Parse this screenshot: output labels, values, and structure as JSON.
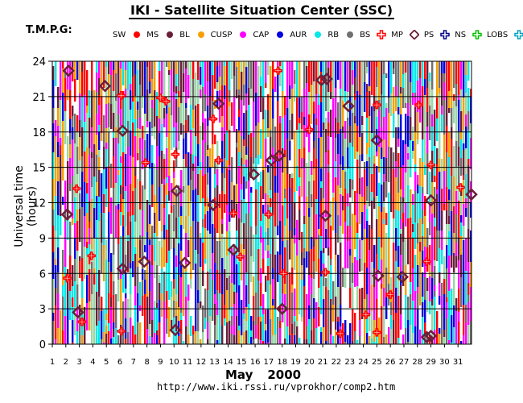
{
  "title": "IKI - Satellite Situation Center (SSC)",
  "header_left": "T.M.P.G:",
  "legend": [
    {
      "label": "SW",
      "color": "#ff0000",
      "shape": "dot"
    },
    {
      "label": "MS",
      "color": "#6b1e3a",
      "shape": "dot"
    },
    {
      "label": "BL",
      "color": "#f5a000",
      "shape": "dot"
    },
    {
      "label": "CUSP",
      "color": "#ff00ff",
      "shape": "dot"
    },
    {
      "label": "CAP",
      "color": "#0000e0",
      "shape": "dot"
    },
    {
      "label": "AUR",
      "color": "#00e8e8",
      "shape": "dot"
    },
    {
      "label": "RB",
      "color": "#707070",
      "shape": "dot"
    },
    {
      "label": "BS",
      "color": "#ff0000",
      "shape": "cross"
    },
    {
      "label": "MP",
      "color": "#6b1e3a",
      "shape": "diamond"
    },
    {
      "label": "PS",
      "color": "#00008b",
      "shape": "cross"
    },
    {
      "label": "NS",
      "color": "#00c000",
      "shape": "cross"
    },
    {
      "label": "LOBS",
      "color": "#00a0c0",
      "shape": "cross"
    }
  ],
  "chart_data": {
    "type": "scatter",
    "ylabel": "Universal time (hours)",
    "xlabel_month": "May",
    "xlabel_year": "2000",
    "x_ticks": [
      1,
      2,
      3,
      4,
      5,
      6,
      7,
      8,
      9,
      10,
      11,
      12,
      13,
      14,
      15,
      16,
      17,
      18,
      19,
      20,
      21,
      22,
      23,
      24,
      25,
      26,
      27,
      28,
      29,
      30,
      31
    ],
    "y_ticks": [
      0,
      3,
      6,
      9,
      12,
      15,
      18,
      21,
      24
    ],
    "xlim": [
      1,
      32
    ],
    "ylim": [
      0,
      24
    ],
    "grid": true,
    "background": "dense colored vertical bars (orbit region coverage per satellite)",
    "series": [
      {
        "name": "BS",
        "points": [
          [
            2.1,
            5.6
          ],
          [
            2.8,
            13.2
          ],
          [
            3.2,
            1.9
          ],
          [
            3.9,
            7.5
          ],
          [
            6.1,
            21.1
          ],
          [
            6.1,
            1.1
          ],
          [
            7.9,
            15.4
          ],
          [
            9.0,
            20.9
          ],
          [
            9.4,
            20.6
          ],
          [
            10.1,
            16.1
          ],
          [
            12.9,
            19.1
          ],
          [
            13.3,
            15.6
          ],
          [
            14.4,
            11.1
          ],
          [
            14.9,
            7.4
          ],
          [
            17.0,
            11.0
          ],
          [
            17.7,
            23.2
          ],
          [
            18.1,
            6.0
          ],
          [
            20.0,
            18.2
          ],
          [
            21.2,
            6.1
          ],
          [
            22.3,
            0.9
          ],
          [
            24.2,
            2.5
          ],
          [
            25.0,
            20.3
          ],
          [
            25.0,
            1.0
          ],
          [
            26.0,
            4.2
          ],
          [
            28.1,
            20.3
          ],
          [
            28.7,
            7.0
          ],
          [
            29.0,
            15.2
          ],
          [
            31.2,
            13.3
          ]
        ]
      },
      {
        "name": "MP",
        "points": [
          [
            2.2,
            23.2
          ],
          [
            2.1,
            11.0
          ],
          [
            2.9,
            2.7
          ],
          [
            4.9,
            21.9
          ],
          [
            6.2,
            18.1
          ],
          [
            6.2,
            6.4
          ],
          [
            7.8,
            7.0
          ],
          [
            10.2,
            13.0
          ],
          [
            10.1,
            1.2
          ],
          [
            10.8,
            6.9
          ],
          [
            12.9,
            11.8
          ],
          [
            13.3,
            20.4
          ],
          [
            14.4,
            8.0
          ],
          [
            15.9,
            14.4
          ],
          [
            17.2,
            15.6
          ],
          [
            17.8,
            16.0
          ],
          [
            18.0,
            3.0
          ],
          [
            20.9,
            22.4
          ],
          [
            21.3,
            22.5
          ],
          [
            21.2,
            10.9
          ],
          [
            22.9,
            20.2
          ],
          [
            25.0,
            17.3
          ],
          [
            25.1,
            5.8
          ],
          [
            26.9,
            5.7
          ],
          [
            28.7,
            0.6
          ],
          [
            29.0,
            0.7
          ],
          [
            29.0,
            12.2
          ],
          [
            32.0,
            12.7
          ]
        ]
      }
    ]
  },
  "url": "http://www.iki.rssi.ru/vprokhor/comp2.htm"
}
